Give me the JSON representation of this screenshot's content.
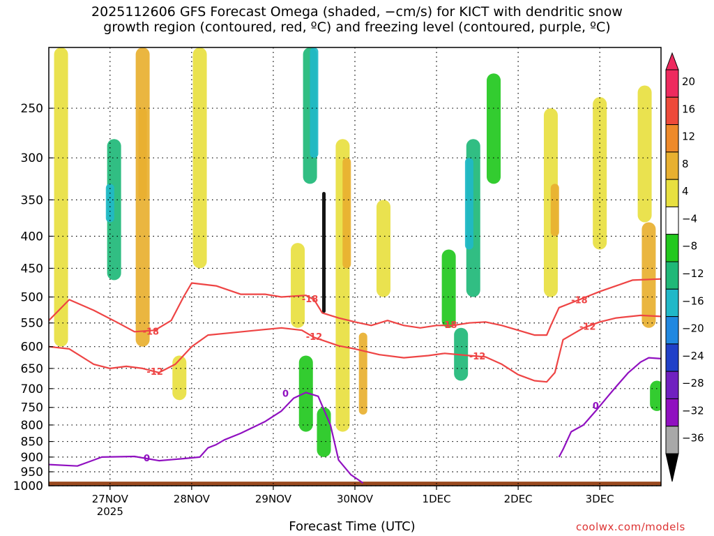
{
  "title": {
    "line1": "2025112606 GFS Forecast Omega (shaded, −cm/s) for KICT with dendritic snow",
    "line2": "growth region (contoured, red, ºC) and freezing level (contoured, purple, ºC)"
  },
  "x_axis_title": "Forecast Time (UTC)",
  "credit": "coolwx.com/models",
  "chart_data": {
    "type": "heatmap",
    "x_range_days": [
      26.25,
      33.75
    ],
    "y_range_hpa": [
      200,
      1000
    ],
    "y_scale": "log-pressure",
    "y_ticks": [
      "250",
      "300",
      "350",
      "400",
      "450",
      "500",
      "550",
      "600",
      "650",
      "700",
      "750",
      "800",
      "850",
      "900",
      "950",
      "1000"
    ],
    "x_ticks": [
      {
        "day": 27,
        "label": "27NOV",
        "sublabel": "2025"
      },
      {
        "day": 28,
        "label": "28NOV",
        "sublabel": ""
      },
      {
        "day": 29,
        "label": "29NOV",
        "sublabel": ""
      },
      {
        "day": 30,
        "label": "30NOV",
        "sublabel": ""
      },
      {
        "day": 31,
        "label": "1DEC",
        "sublabel": ""
      },
      {
        "day": 32,
        "label": "2DEC",
        "sublabel": ""
      },
      {
        "day": 33,
        "label": "3DEC",
        "sublabel": ""
      }
    ],
    "colorbar": {
      "labels": [
        "20",
        "16",
        "12",
        "8",
        "4",
        "−4",
        "−8",
        "−12",
        "−16",
        "−20",
        "−24",
        "−28",
        "−32",
        "−36"
      ],
      "colors": [
        "#ee2a5e",
        "#ee4a3a",
        "#ee8a2a",
        "#e8b030",
        "#e8e040",
        "#ffffff",
        "#22c81e",
        "#20b878",
        "#20b8c8",
        "#2088e0",
        "#2040c8",
        "#7020c0",
        "#9010c0",
        "#a8a8a8"
      ]
    },
    "omega_patches": [
      {
        "day": 26.4,
        "p_top": 200,
        "p_bot": 600,
        "value": 5
      },
      {
        "day": 27.4,
        "p_top": 200,
        "p_bot": 600,
        "value": 8
      },
      {
        "day": 27.4,
        "p_top": 250,
        "p_bot": 350,
        "value": 11
      },
      {
        "day": 27.05,
        "p_top": 280,
        "p_bot": 470,
        "value": -8
      },
      {
        "day": 27.0,
        "p_top": 330,
        "p_bot": 380,
        "value": -13
      },
      {
        "day": 28.1,
        "p_top": 200,
        "p_bot": 450,
        "value": 5
      },
      {
        "day": 27.85,
        "p_top": 620,
        "p_bot": 730,
        "value": 5
      },
      {
        "day": 29.45,
        "p_top": 200,
        "p_bot": 330,
        "value": -9
      },
      {
        "day": 29.5,
        "p_top": 200,
        "p_bot": 300,
        "value": -13
      },
      {
        "day": 29.62,
        "p_top": 340,
        "p_bot": 530,
        "value": -36
      },
      {
        "day": 29.85,
        "p_top": 280,
        "p_bot": 820,
        "value": 6
      },
      {
        "day": 29.9,
        "p_top": 300,
        "p_bot": 450,
        "value": 11
      },
      {
        "day": 30.1,
        "p_top": 570,
        "p_bot": 770,
        "value": 10
      },
      {
        "day": 29.4,
        "p_top": 620,
        "p_bot": 820,
        "value": -7
      },
      {
        "day": 29.62,
        "p_top": 750,
        "p_bot": 900,
        "value": -7
      },
      {
        "day": 30.35,
        "p_top": 350,
        "p_bot": 500,
        "value": 5
      },
      {
        "day": 31.15,
        "p_top": 420,
        "p_bot": 560,
        "value": -7
      },
      {
        "day": 31.3,
        "p_top": 560,
        "p_bot": 680,
        "value": -8
      },
      {
        "day": 31.45,
        "p_top": 280,
        "p_bot": 500,
        "value": -8
      },
      {
        "day": 31.4,
        "p_top": 300,
        "p_bot": 420,
        "value": -13
      },
      {
        "day": 31.7,
        "p_top": 220,
        "p_bot": 330,
        "value": -7
      },
      {
        "day": 32.4,
        "p_top": 250,
        "p_bot": 500,
        "value": 6
      },
      {
        "day": 32.45,
        "p_top": 330,
        "p_bot": 400,
        "value": 10
      },
      {
        "day": 33.0,
        "p_top": 240,
        "p_bot": 420,
        "value": 5
      },
      {
        "day": 33.55,
        "p_top": 230,
        "p_bot": 380,
        "value": 5
      },
      {
        "day": 33.6,
        "p_top": 380,
        "p_bot": 560,
        "value": 8
      },
      {
        "day": 33.7,
        "p_top": 680,
        "p_bot": 760,
        "value": -7
      },
      {
        "day": 29.3,
        "p_top": 410,
        "p_bot": 560,
        "value": 5
      }
    ],
    "contours": [
      {
        "name": "-18",
        "color": "#ee4444",
        "points": [
          [
            26.25,
            545
          ],
          [
            26.5,
            505
          ],
          [
            26.8,
            525
          ],
          [
            27.1,
            550
          ],
          [
            27.3,
            568
          ],
          [
            27.55,
            565
          ],
          [
            27.75,
            545
          ],
          [
            27.9,
            500
          ],
          [
            28.0,
            475
          ],
          [
            28.3,
            480
          ],
          [
            28.6,
            495
          ],
          [
            28.9,
            495
          ],
          [
            29.1,
            500
          ],
          [
            29.4,
            497
          ],
          [
            29.5,
            505
          ],
          [
            29.6,
            530
          ],
          [
            29.8,
            540
          ],
          [
            30.0,
            548
          ],
          [
            30.2,
            555
          ],
          [
            30.4,
            545
          ],
          [
            30.6,
            555
          ],
          [
            30.8,
            560
          ],
          [
            31.0,
            555
          ],
          [
            31.2,
            555
          ],
          [
            31.4,
            550
          ],
          [
            31.6,
            548
          ],
          [
            31.8,
            555
          ],
          [
            32.0,
            565
          ],
          [
            32.2,
            575
          ],
          [
            32.35,
            575
          ],
          [
            32.4,
            555
          ],
          [
            32.5,
            520
          ],
          [
            32.75,
            505
          ],
          [
            33.0,
            490
          ],
          [
            33.2,
            480
          ],
          [
            33.4,
            470
          ],
          [
            33.75,
            468
          ]
        ],
        "labels": [
          {
            "day": 27.5,
            "p": 567
          },
          {
            "day": 29.45,
            "p": 503
          },
          {
            "day": 31.15,
            "p": 553
          },
          {
            "day": 32.75,
            "p": 505
          }
        ]
      },
      {
        "name": "-12",
        "color": "#ee4444",
        "points": [
          [
            26.25,
            600
          ],
          [
            26.5,
            605
          ],
          [
            26.8,
            640
          ],
          [
            27.0,
            650
          ],
          [
            27.2,
            645
          ],
          [
            27.4,
            650
          ],
          [
            27.6,
            660
          ],
          [
            27.8,
            640
          ],
          [
            28.0,
            600
          ],
          [
            28.2,
            575
          ],
          [
            28.5,
            570
          ],
          [
            28.8,
            565
          ],
          [
            29.1,
            560
          ],
          [
            29.35,
            565
          ],
          [
            29.5,
            580
          ],
          [
            29.8,
            598
          ],
          [
            30.0,
            605
          ],
          [
            30.3,
            618
          ],
          [
            30.6,
            625
          ],
          [
            30.9,
            620
          ],
          [
            31.1,
            615
          ],
          [
            31.4,
            620
          ],
          [
            31.6,
            623
          ],
          [
            31.8,
            640
          ],
          [
            32.0,
            665
          ],
          [
            32.2,
            680
          ],
          [
            32.35,
            683
          ],
          [
            32.45,
            660
          ],
          [
            32.55,
            585
          ],
          [
            32.8,
            560
          ],
          [
            33.0,
            548
          ],
          [
            33.2,
            540
          ],
          [
            33.5,
            535
          ],
          [
            33.75,
            537
          ]
        ],
        "labels": [
          {
            "day": 27.55,
            "p": 657
          },
          {
            "day": 29.5,
            "p": 578
          },
          {
            "day": 31.5,
            "p": 621
          },
          {
            "day": 32.85,
            "p": 557
          }
        ]
      },
      {
        "name": "0",
        "color": "#9010c0",
        "points": [
          [
            26.25,
            925
          ],
          [
            26.6,
            930
          ],
          [
            26.9,
            900
          ],
          [
            27.3,
            898
          ],
          [
            27.6,
            912
          ],
          [
            27.9,
            905
          ],
          [
            28.1,
            900
          ],
          [
            28.2,
            870
          ],
          [
            28.3,
            860
          ],
          [
            28.4,
            845
          ],
          [
            28.6,
            825
          ],
          [
            28.9,
            790
          ],
          [
            29.1,
            760
          ],
          [
            29.25,
            725
          ],
          [
            29.4,
            710
          ],
          [
            29.55,
            720
          ],
          [
            29.7,
            800
          ],
          [
            29.8,
            910
          ],
          [
            29.95,
            960
          ],
          [
            30.1,
            990
          ]
        ],
        "labels": [
          {
            "day": 27.45,
            "p": 902
          },
          {
            "day": 29.15,
            "p": 712
          }
        ]
      },
      {
        "name": "0-right",
        "color": "#9010c0",
        "points": [
          [
            32.5,
            900
          ],
          [
            32.55,
            875
          ],
          [
            32.65,
            820
          ],
          [
            32.8,
            800
          ],
          [
            32.95,
            760
          ],
          [
            33.1,
            720
          ],
          [
            33.2,
            695
          ],
          [
            33.35,
            660
          ],
          [
            33.5,
            635
          ],
          [
            33.6,
            625
          ],
          [
            33.75,
            627
          ]
        ],
        "labels": [
          {
            "day": 32.95,
            "p": 745
          }
        ]
      }
    ]
  }
}
